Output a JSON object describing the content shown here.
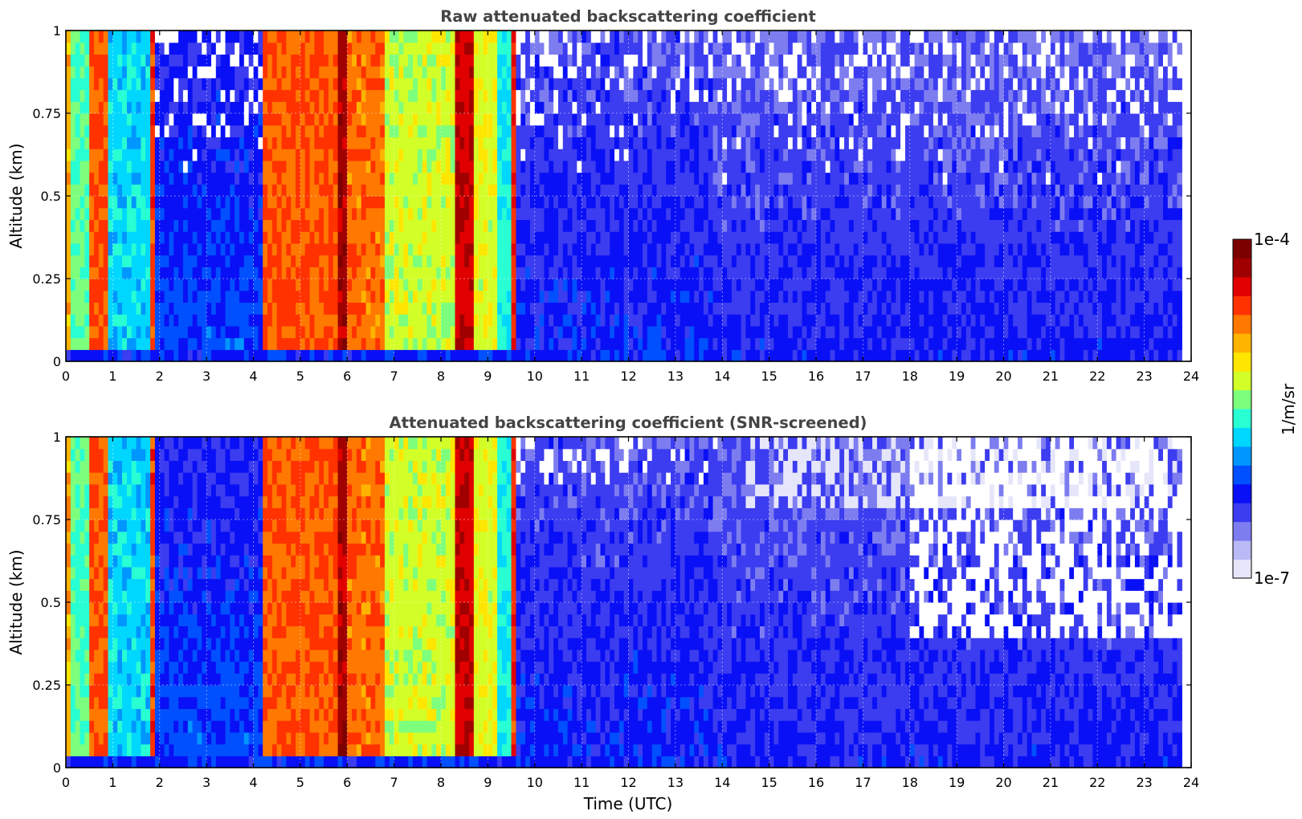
{
  "chart_data": [
    {
      "type": "heatmap",
      "title": "Raw attenuated backscattering coefficient",
      "xlabel": "",
      "ylabel": "Altitude (km)",
      "xlim": [
        0,
        24
      ],
      "ylim": [
        0,
        1
      ],
      "x_ticks": [
        "0",
        "1",
        "2",
        "3",
        "4",
        "5",
        "6",
        "7",
        "8",
        "9",
        "10",
        "11",
        "12",
        "13",
        "14",
        "15",
        "16",
        "17",
        "18",
        "19",
        "20",
        "21",
        "22",
        "23",
        "24"
      ],
      "y_ticks": [
        "0",
        "0.25",
        "0.5",
        "0.75",
        "1"
      ],
      "grid": true,
      "screened": false
    },
    {
      "type": "heatmap",
      "title": "Attenuated backscattering coefficient (SNR-screened)",
      "xlabel": "Time (UTC)",
      "ylabel": "Altitude (km)",
      "xlim": [
        0,
        24
      ],
      "ylim": [
        0,
        1
      ],
      "x_ticks": [
        "0",
        "1",
        "2",
        "3",
        "4",
        "5",
        "6",
        "7",
        "8",
        "9",
        "10",
        "11",
        "12",
        "13",
        "14",
        "15",
        "16",
        "17",
        "18",
        "19",
        "20",
        "21",
        "22",
        "23",
        "24"
      ],
      "y_ticks": [
        "0",
        "0.25",
        "0.5",
        "0.75",
        "1"
      ],
      "grid": true,
      "screened": true
    }
  ],
  "colorbar": {
    "label": "1/m/sr",
    "max_label": "1e-4",
    "min_label": "1e-7",
    "scale": "log",
    "colors": [
      "#e6e6fa",
      "#b9b9f5",
      "#7d7df0",
      "#3c3cf0",
      "#0a10f5",
      "#0050ff",
      "#0096ff",
      "#00d7ff",
      "#28ffd2",
      "#7dff7d",
      "#d2ff28",
      "#ffe600",
      "#ffb400",
      "#ff7800",
      "#ff3200",
      "#e10000",
      "#a00000",
      "#7d0000"
    ]
  },
  "profile": {
    "time_segments": [
      {
        "t0": 0.0,
        "t1": 0.1,
        "level": 0.7
      },
      {
        "t0": 0.1,
        "t1": 0.55,
        "level": 0.5
      },
      {
        "t0": 0.55,
        "t1": 0.9,
        "level": 0.78
      },
      {
        "t0": 0.9,
        "t1": 1.8,
        "level": 0.42
      },
      {
        "t0": 1.8,
        "t1": 1.95,
        "level": 0.8
      },
      {
        "t0": 1.95,
        "t1": 4.25,
        "level": 0.3
      },
      {
        "t0": 4.25,
        "t1": 5.8,
        "level": 0.78
      },
      {
        "t0": 5.8,
        "t1": 5.95,
        "level": 0.92
      },
      {
        "t0": 5.95,
        "t1": 6.8,
        "level": 0.76
      },
      {
        "t0": 6.8,
        "t1": 8.3,
        "level": 0.58
      },
      {
        "t0": 8.3,
        "t1": 8.7,
        "level": 0.88
      },
      {
        "t0": 8.7,
        "t1": 9.2,
        "level": 0.6
      },
      {
        "t0": 9.2,
        "t1": 9.45,
        "level": 0.45
      },
      {
        "t0": 9.45,
        "t1": 9.55,
        "level": 0.82
      },
      {
        "t0": 9.55,
        "t1": 13.8,
        "level": 0.26
      },
      {
        "t0": 13.8,
        "t1": 23.8,
        "level": 0.24
      }
    ]
  }
}
